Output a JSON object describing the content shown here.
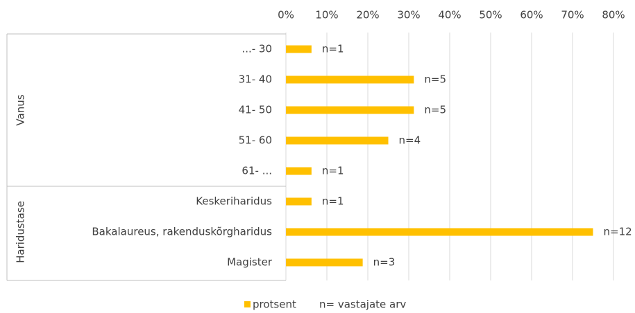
{
  "chart_data": {
    "type": "bar",
    "orientation": "horizontal",
    "groups": [
      {
        "label": "Vanus",
        "count": 5
      },
      {
        "label": "Haridustase",
        "count": 3
      }
    ],
    "categories": [
      "...- 30",
      "31- 40",
      "41- 50",
      "51- 60",
      "61- ...",
      "Keskeriharidus",
      "Bakalaureus, rakenduskõrgharidus",
      "Magister"
    ],
    "series": [
      {
        "name": "protsent",
        "color": "#ffc000",
        "values": [
          6.25,
          31.25,
          31.25,
          25,
          6.25,
          6.25,
          75,
          18.75
        ]
      }
    ],
    "bar_annotations": [
      "n=1",
      "n=5",
      "n=5",
      "n=4",
      "n=1",
      "n=1",
      "n=12",
      "n=3"
    ],
    "legend_note": "n= vastajate arv",
    "xlim": [
      0,
      80
    ],
    "xticks": [
      {
        "value": 0,
        "label": "0%"
      },
      {
        "value": 10,
        "label": "10%"
      },
      {
        "value": 20,
        "label": "20%"
      },
      {
        "value": 30,
        "label": "30%"
      },
      {
        "value": 40,
        "label": "40%"
      },
      {
        "value": 50,
        "label": "50%"
      },
      {
        "value": 60,
        "label": "60%"
      },
      {
        "value": 70,
        "label": "70%"
      },
      {
        "value": 80,
        "label": "80%"
      }
    ],
    "grid": true
  }
}
